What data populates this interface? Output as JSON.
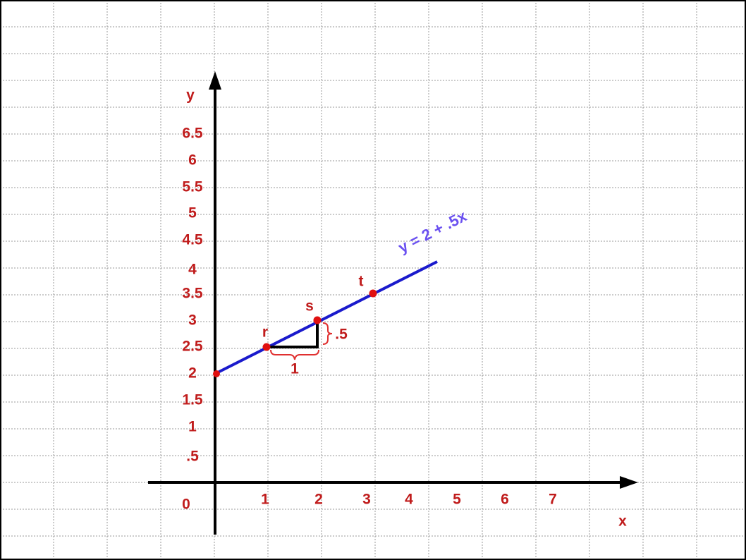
{
  "axes": {
    "x_label": "x",
    "y_label": "y",
    "origin": "0",
    "x_ticks": [
      "1",
      "2",
      "3",
      "4",
      "5",
      "6",
      "7"
    ],
    "y_ticks": [
      "6.5",
      "6",
      "5.5",
      "5",
      "4.5",
      "4",
      "3.5",
      "3",
      "2.5",
      "2",
      "1.5",
      "1",
      ".5"
    ]
  },
  "points": [
    {
      "label": "r"
    },
    {
      "label": "s"
    },
    {
      "label": "t"
    }
  ],
  "equation": "y = 2 + .5x",
  "slope": {
    "run": "1",
    "rise": ".5"
  }
}
